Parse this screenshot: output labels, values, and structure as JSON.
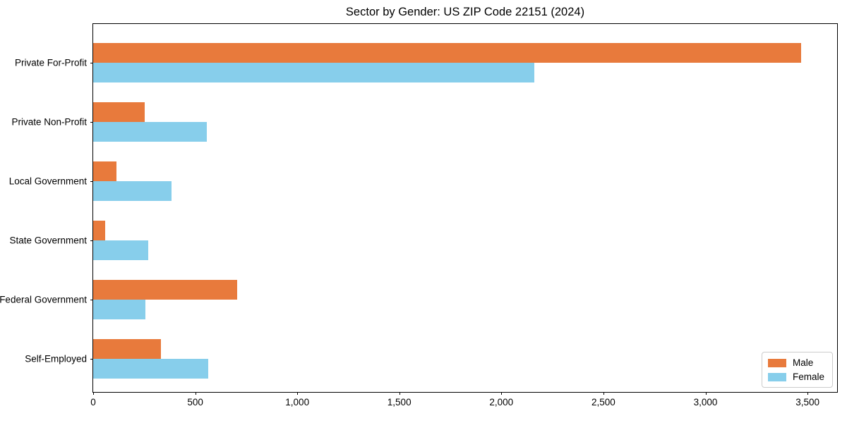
{
  "chart_data": {
    "type": "bar",
    "orientation": "horizontal",
    "title": "Sector by Gender: US ZIP Code 22151 (2024)",
    "categories": [
      "Private For-Profit",
      "Private Non-Profit",
      "Local Government",
      "State Government",
      "Federal Government",
      "Self-Employed"
    ],
    "series": [
      {
        "name": "Male",
        "color": "#e87a3c",
        "values": [
          3470,
          252,
          114,
          59,
          705,
          332
        ]
      },
      {
        "name": "Female",
        "color": "#87ceeb",
        "values": [
          2160,
          556,
          384,
          270,
          256,
          563
        ]
      }
    ],
    "xlabel": "",
    "ylabel": "",
    "xlim": [
      0,
      3645
    ],
    "xtick_values": [
      0,
      500,
      1000,
      1500,
      2000,
      2500,
      3000,
      3500
    ],
    "xtick_labels": [
      "0",
      "500",
      "1,000",
      "1,500",
      "2,000",
      "2,500",
      "3,000",
      "3,500"
    ],
    "grid": false,
    "legend_position": "lower right",
    "background_color": "#ffffff",
    "spine_color": "#000000"
  }
}
